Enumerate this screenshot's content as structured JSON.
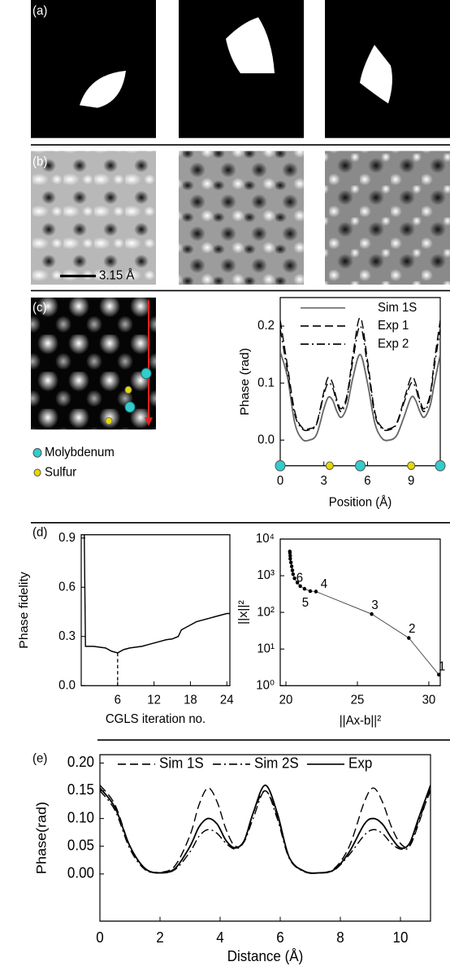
{
  "labels": {
    "a": "(a)",
    "b": "(b)",
    "c": "(c)",
    "d": "(d)",
    "e": "(e)"
  },
  "scale_bar": "3.15 Å",
  "chart_data": [
    {
      "type": "line",
      "smooth": true,
      "y_label": "Phase (rad)",
      "x_label": "Position (Å)",
      "x": [
        0,
        0.5,
        1,
        1.5,
        2,
        2.5,
        3,
        3.3,
        3.6,
        3.9,
        4.2,
        4.6,
        5,
        5.5,
        6,
        6.5,
        7,
        7.5,
        8,
        8.5,
        9,
        9.3,
        9.6,
        9.9,
        10.3,
        10.6,
        11
      ],
      "series": [
        {
          "name": "Sim 1S",
          "color": "#666666",
          "dash": "solid",
          "values": [
            0.155,
            0.11,
            0.03,
            0.002,
            0.0,
            0.01,
            0.055,
            0.075,
            0.07,
            0.05,
            0.04,
            0.06,
            0.11,
            0.15,
            0.1,
            0.03,
            0.003,
            0.0,
            0.008,
            0.04,
            0.075,
            0.07,
            0.05,
            0.04,
            0.06,
            0.1,
            0.15
          ]
        },
        {
          "name": "Exp 1",
          "color": "#000000",
          "dash": "dashed",
          "values": [
            0.21,
            0.13,
            0.05,
            0.022,
            0.02,
            0.03,
            0.085,
            0.11,
            0.1,
            0.07,
            0.055,
            0.08,
            0.15,
            0.215,
            0.14,
            0.05,
            0.022,
            0.02,
            0.03,
            0.07,
            0.11,
            0.1,
            0.07,
            0.055,
            0.08,
            0.14,
            0.21
          ]
        },
        {
          "name": "Exp 2",
          "color": "#000000",
          "dash": "dashdot",
          "values": [
            0.195,
            0.12,
            0.045,
            0.02,
            0.018,
            0.028,
            0.08,
            0.1,
            0.092,
            0.065,
            0.05,
            0.075,
            0.14,
            0.2,
            0.13,
            0.045,
            0.02,
            0.018,
            0.028,
            0.065,
            0.1,
            0.092,
            0.065,
            0.05,
            0.075,
            0.13,
            0.195
          ]
        }
      ],
      "xlim": [
        0,
        11
      ],
      "ylim": [
        -0.045,
        0.25
      ],
      "xticks": [
        0,
        3,
        6,
        9
      ],
      "yticks": [
        {
          "value": 0,
          "label": "0.0"
        },
        0.1,
        0.2
      ],
      "legend": "upper right",
      "atoms": [
        {
          "name": "Molybdenum",
          "color": "#33cccc",
          "x": [
            0,
            5.5,
            11
          ]
        },
        {
          "name": "Sulfur",
          "color": "#e6d800",
          "x": [
            3.4,
            9
          ]
        }
      ]
    },
    {
      "type": "line",
      "y_label": "Phase fidelity",
      "x_label": "CGLS iteration no.",
      "color": "#000000",
      "x": [
        0.5,
        0.7,
        2,
        3,
        4,
        5,
        6,
        7,
        8,
        9,
        10,
        11,
        12,
        13,
        14,
        15,
        16,
        16.5,
        17,
        18,
        19,
        20,
        21,
        22,
        23,
        24,
        24.5
      ],
      "values": [
        0.92,
        0.24,
        0.24,
        0.235,
        0.23,
        0.21,
        0.2,
        0.22,
        0.23,
        0.235,
        0.24,
        0.25,
        0.26,
        0.27,
        0.28,
        0.285,
        0.3,
        0.34,
        0.35,
        0.37,
        0.39,
        0.4,
        0.41,
        0.42,
        0.43,
        0.44,
        0.44
      ],
      "xlim": [
        0,
        24.5
      ],
      "ylim": [
        0,
        0.92
      ],
      "xticks": [
        6,
        12,
        18,
        24
      ],
      "yticks": [
        {
          "value": 0,
          "label": "0.0"
        },
        0.3,
        0.6,
        0.9
      ]
    },
    {
      "type": "scatter",
      "log_y": true,
      "y_label": "||x||²",
      "x_label": "||Ax-b||²",
      "color": "#000000",
      "x": [
        30.7,
        28.6,
        26,
        22.1,
        21.7,
        21.3,
        21.0,
        20.8,
        20.6,
        20.5,
        20.45,
        20.4,
        20.35,
        20.3,
        20.3,
        20.28,
        20.27
      ],
      "values": [
        2,
        20,
        90,
        370,
        380,
        440,
        520,
        650,
        850,
        1100,
        1400,
        1800,
        2300,
        2900,
        3500,
        4200,
        4600
      ],
      "point_labels": [
        "1",
        "2",
        "3",
        "4",
        "5",
        "6",
        null,
        null,
        null,
        null,
        null,
        null,
        null,
        null,
        null,
        null,
        null
      ],
      "xlim": [
        19.6,
        30.8
      ],
      "ylim": [
        1,
        10000
      ],
      "xticks": [
        20,
        25,
        30
      ],
      "yticks": [
        {
          "value": 1,
          "label": "10⁰"
        },
        {
          "value": 10,
          "label": "10¹"
        },
        {
          "value": 100,
          "label": "10²"
        },
        {
          "value": 1000,
          "label": "10³"
        },
        {
          "value": 10000,
          "label": "10⁴"
        }
      ]
    },
    {
      "type": "line",
      "smooth": true,
      "y_label": "Phase(rad)",
      "x_label": "Distance (Å)",
      "x": [
        0,
        0.5,
        1,
        1.5,
        2,
        2.5,
        3,
        3.3,
        3.6,
        3.9,
        4.2,
        4.5,
        4.8,
        5.1,
        5.5,
        5.9,
        6.3,
        6.8,
        7.3,
        7.8,
        8.3,
        8.8,
        9.1,
        9.4,
        9.7,
        10,
        10.3,
        10.6,
        11
      ],
      "series": [
        {
          "name": "Sim 1S",
          "color": "#000000",
          "dash": "dashed",
          "values": [
            0.16,
            0.125,
            0.05,
            0.01,
            0.003,
            0.015,
            0.07,
            0.125,
            0.155,
            0.13,
            0.08,
            0.05,
            0.06,
            0.11,
            0.15,
            0.105,
            0.03,
            0.005,
            0.002,
            0.01,
            0.05,
            0.13,
            0.155,
            0.13,
            0.085,
            0.055,
            0.05,
            0.09,
            0.155
          ]
        },
        {
          "name": "Sim 2S",
          "color": "#000000",
          "dash": "dashdot",
          "values": [
            0.15,
            0.115,
            0.045,
            0.008,
            0.002,
            0.008,
            0.04,
            0.068,
            0.08,
            0.073,
            0.055,
            0.045,
            0.058,
            0.1,
            0.15,
            0.1,
            0.028,
            0.004,
            0.002,
            0.007,
            0.035,
            0.07,
            0.08,
            0.073,
            0.055,
            0.045,
            0.05,
            0.095,
            0.15
          ]
        },
        {
          "name": "Exp",
          "color": "#000000",
          "dash": "solid",
          "values": [
            0.155,
            0.12,
            0.05,
            0.01,
            0.002,
            0.01,
            0.05,
            0.085,
            0.1,
            0.09,
            0.06,
            0.047,
            0.06,
            0.11,
            0.16,
            0.11,
            0.03,
            0.005,
            0.002,
            0.008,
            0.04,
            0.09,
            0.1,
            0.09,
            0.065,
            0.047,
            0.055,
            0.1,
            0.16
          ]
        }
      ],
      "xlim": [
        0,
        11
      ],
      "ylim": [
        -0.085,
        0.215
      ],
      "xticks": [
        0,
        2,
        4,
        6,
        8,
        10
      ],
      "yticks": [
        {
          "value": 0,
          "label": "0.00"
        },
        {
          "value": 0.05,
          "label": "0.05"
        },
        {
          "value": 0.1,
          "label": "0.10"
        },
        {
          "value": 0.15,
          "label": "0.15"
        },
        {
          "value": 0.2,
          "label": "0.20"
        }
      ],
      "legend": "top"
    }
  ]
}
